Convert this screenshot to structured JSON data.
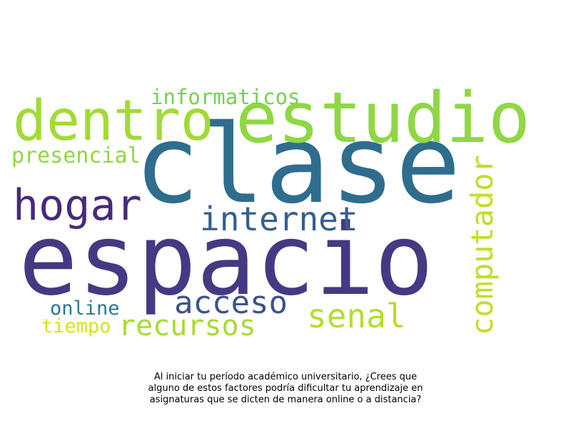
{
  "words": [
    {
      "key": "espacio",
      "text": "espacio",
      "color": "#433a83"
    },
    {
      "key": "clase",
      "text": "clase",
      "color": "#2f6d8e"
    },
    {
      "key": "estudio",
      "text": "estudio",
      "color": "#8fd744"
    },
    {
      "key": "dentro",
      "text": "dentro",
      "color": "#a2da37"
    },
    {
      "key": "hogar",
      "text": "hogar",
      "color": "#472a7a"
    },
    {
      "key": "internet",
      "text": "internet",
      "color": "#355f8d"
    },
    {
      "key": "computador",
      "text": "computador",
      "color": "#c0df25"
    },
    {
      "key": "acceso",
      "text": "acceso",
      "color": "#3b528b"
    },
    {
      "key": "senal",
      "text": "senal",
      "color": "#b5de2b"
    },
    {
      "key": "recursos",
      "text": "recursos",
      "color": "#a8db34"
    },
    {
      "key": "informaticos",
      "text": "informaticos",
      "color": "#75d054"
    },
    {
      "key": "presencial",
      "text": "presencial",
      "color": "#90d743"
    },
    {
      "key": "online",
      "text": "online",
      "color": "#2a788e"
    },
    {
      "key": "tiempo",
      "text": "tiempo",
      "color": "#d8e219"
    }
  ],
  "caption": {
    "line1": "Al iniciar tu período académico universitario, ¿Crees que",
    "line2": "alguno de estos factores podría dificultar tu aprendizaje en",
    "line3": "asignaturas que se dicten de manera online o a distancia?"
  }
}
